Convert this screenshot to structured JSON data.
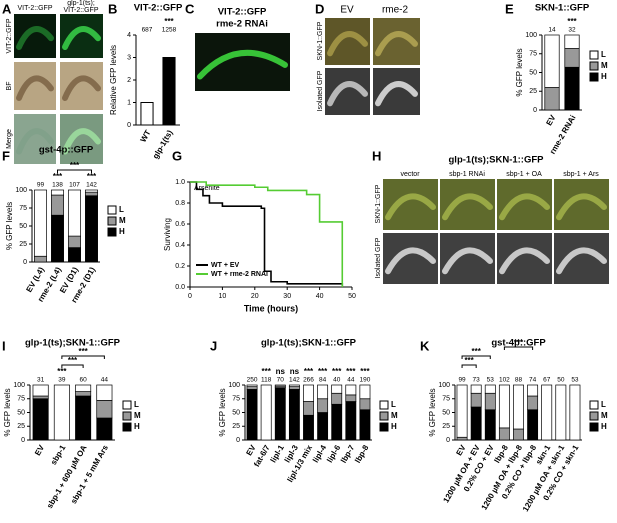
{
  "panel_letters": [
    "A",
    "B",
    "C",
    "D",
    "E",
    "F",
    "G",
    "H",
    "I",
    "J",
    "K"
  ],
  "images": {
    "A": {
      "columns": [
        [
          "VIT-2::GFP"
        ],
        [
          "glp-1(ts);",
          "VIT-2::GFP"
        ]
      ],
      "rows": [
        "VIT-2::GFP",
        "BF",
        "Merge"
      ]
    },
    "C": {
      "lines": [
        "VIT-2::GFP",
        "rme-2 RNAi"
      ]
    },
    "D": {
      "columns": [
        "EV",
        "rme-2"
      ],
      "rows": [
        "SKN-1::GFP",
        "Isolated GFP"
      ]
    },
    "H": {
      "title": "glp-1(ts);SKN-1::GFP",
      "columns": [
        "vector",
        "sbp-1 RNAi",
        "sbp-1 + OA",
        "sbp-1 + Ars"
      ],
      "rows": [
        "SKN-1::GFP",
        "Isolated GFP"
      ]
    }
  },
  "chart_data": [
    {
      "type": "bar",
      "title": "VIT-2::GFP",
      "ylabel": "Relative GFP levels",
      "categories": [
        "WT",
        "glp-1(ts)"
      ],
      "values": [
        1,
        3.0
      ],
      "colors": [
        "#ffffff",
        "#000000"
      ],
      "n": [
        687,
        1258
      ],
      "stats": [
        null,
        "***"
      ],
      "ylim": [
        0,
        4
      ],
      "yticks": [
        0,
        1,
        2,
        3,
        4
      ]
    },
    {
      "type": "stacked_bar",
      "title": "SKN-1::GFP",
      "ylabel": "% GFP levels",
      "categories": [
        "EV",
        "rme-2 RNAi"
      ],
      "n": [
        14,
        32
      ],
      "stats": [
        null,
        "***"
      ],
      "legend": "right",
      "series": [
        {
          "name": "L",
          "color": "#ffffff",
          "values": [
            70,
            18
          ]
        },
        {
          "name": "M",
          "color": "#999999",
          "values": [
            30,
            25
          ]
        },
        {
          "name": "H",
          "color": "#000000",
          "values": [
            0,
            57
          ]
        }
      ],
      "ylim": [
        0,
        100
      ],
      "yticks": [
        0,
        25,
        50,
        75,
        100
      ]
    },
    {
      "type": "stacked_bar",
      "title": "gst-4p::GFP",
      "ylabel": "% GFP levels",
      "categories": [
        "EV (L4)",
        "rme-2 (L4)",
        "EV (D1)",
        "rme-2 (D1)"
      ],
      "n": [
        99,
        138,
        107,
        142
      ],
      "stats": [
        null,
        "***",
        null,
        "***"
      ],
      "brackets": [
        "***"
      ],
      "legend": "right",
      "series": [
        {
          "name": "L",
          "color": "#ffffff",
          "values": [
            92,
            7,
            64,
            3
          ]
        },
        {
          "name": "M",
          "color": "#999999",
          "values": [
            8,
            28,
            16,
            5
          ]
        },
        {
          "name": "H",
          "color": "#000000",
          "values": [
            0,
            65,
            20,
            92
          ]
        }
      ],
      "ylim": [
        0,
        100
      ],
      "yticks": [
        0,
        25,
        50,
        75,
        100
      ]
    },
    {
      "type": "line",
      "annotation": "Arsenite",
      "xlabel": "Time (hours)",
      "ylabel": "Surviving",
      "legend": "lower left",
      "series": [
        {
          "name": "WT + EV",
          "color": "#000000",
          "x": [
            0,
            2,
            2,
            4,
            4,
            6,
            6,
            10,
            10,
            22,
            22,
            23,
            23,
            25,
            25,
            30,
            30,
            47,
            47
          ],
          "values": [
            1,
            1,
            0.93,
            0.93,
            0.87,
            0.87,
            0.8,
            0.8,
            0.77,
            0.77,
            0.75,
            0.75,
            0.15,
            0.15,
            0.05,
            0.05,
            0.03,
            0.03,
            0
          ]
        },
        {
          "name": "WT + rme-2 RNAi",
          "color": "#55cc33",
          "x": [
            0,
            5,
            5,
            20,
            20,
            24,
            24,
            36,
            36,
            40,
            40,
            47,
            47
          ],
          "values": [
            1,
            1,
            0.97,
            0.97,
            0.95,
            0.95,
            0.92,
            0.92,
            0.88,
            0.88,
            0.62,
            0.62,
            0
          ]
        }
      ],
      "xlim": [
        0,
        50
      ],
      "xticks": [
        0,
        10,
        20,
        30,
        40,
        50
      ],
      "ylim": [
        0,
        1.0
      ],
      "yticks": [
        {
          "value": 0,
          "label": "0.0"
        },
        0.2,
        0.4,
        0.6,
        0.8,
        {
          "value": 1.0,
          "label": "1.0"
        }
      ]
    },
    {
      "type": "stacked_bar",
      "title": "glp-1(ts);SKN-1::GFP",
      "ylabel": "% GFP levels",
      "categories": [
        "EV",
        "sbp-1",
        "sbp-1 + 600 µM OA",
        "sbp-1 + 5 mM Ars"
      ],
      "n": [
        31,
        39,
        60,
        44
      ],
      "stats": [
        null,
        "***",
        null,
        null
      ],
      "brackets": [
        "***",
        "***"
      ],
      "legend": "right",
      "series": [
        {
          "name": "L",
          "color": "#ffffff",
          "values": [
            20,
            100,
            12,
            28
          ]
        },
        {
          "name": "M",
          "color": "#999999",
          "values": [
            5,
            0,
            8,
            32
          ]
        },
        {
          "name": "H",
          "color": "#000000",
          "values": [
            75,
            0,
            80,
            40
          ]
        }
      ],
      "ylim": [
        0,
        100
      ],
      "yticks": [
        0,
        25,
        50,
        75,
        100
      ]
    },
    {
      "type": "stacked_bar",
      "title": "glp-1(ts);SKN-1::GFP",
      "ylabel": "% GFP levels",
      "categories": [
        "EV",
        "fat-6/7",
        "lipl-1",
        "lipl-3",
        "lipl-1/3 mix",
        "lipl-4",
        "lipl-6",
        "lbp-7",
        "lbp-8"
      ],
      "n": [
        250,
        118,
        70,
        142,
        266,
        84,
        40,
        44,
        190
      ],
      "stats": [
        null,
        "***",
        "ns",
        "ns",
        "***",
        "***",
        "***",
        "***",
        "***"
      ],
      "legend": "right",
      "series": [
        {
          "name": "L",
          "color": "#ffffff",
          "values": [
            3,
            100,
            2,
            3,
            30,
            25,
            15,
            18,
            25
          ]
        },
        {
          "name": "M",
          "color": "#999999",
          "values": [
            5,
            0,
            3,
            5,
            25,
            25,
            20,
            12,
            20
          ]
        },
        {
          "name": "H",
          "color": "#000000",
          "values": [
            92,
            0,
            95,
            92,
            45,
            50,
            65,
            70,
            55
          ]
        }
      ],
      "ylim": [
        0,
        100
      ],
      "yticks": [
        0,
        25,
        50,
        75,
        100
      ]
    },
    {
      "type": "stacked_bar",
      "title": "gst-4p::GFP",
      "ylabel": "% GFP levels",
      "categories": [
        "EV",
        "1200 µM OA + EV",
        "0.2% CO + EV",
        "lbp-8",
        "1200 µM OA + lbp-8",
        "0.2% CO + lbp-8",
        "skn-1",
        "1200 µM OA + skn-1",
        "0.2% CO + skn-1"
      ],
      "n": [
        99,
        73,
        53,
        102,
        88,
        74,
        67,
        50,
        53
      ],
      "brackets": [
        "***",
        "***",
        "***"
      ],
      "legend": "right",
      "series": [
        {
          "name": "L",
          "color": "#ffffff",
          "values": [
            95,
            15,
            15,
            78,
            80,
            20,
            100,
            100,
            100
          ]
        },
        {
          "name": "M",
          "color": "#999999",
          "values": [
            5,
            25,
            30,
            22,
            20,
            25,
            0,
            0,
            0
          ]
        },
        {
          "name": "H",
          "color": "#000000",
          "values": [
            0,
            60,
            55,
            0,
            0,
            55,
            0,
            0,
            0
          ]
        }
      ],
      "ylim": [
        0,
        100
      ],
      "yticks": [
        0,
        25,
        50,
        75,
        100
      ]
    }
  ]
}
